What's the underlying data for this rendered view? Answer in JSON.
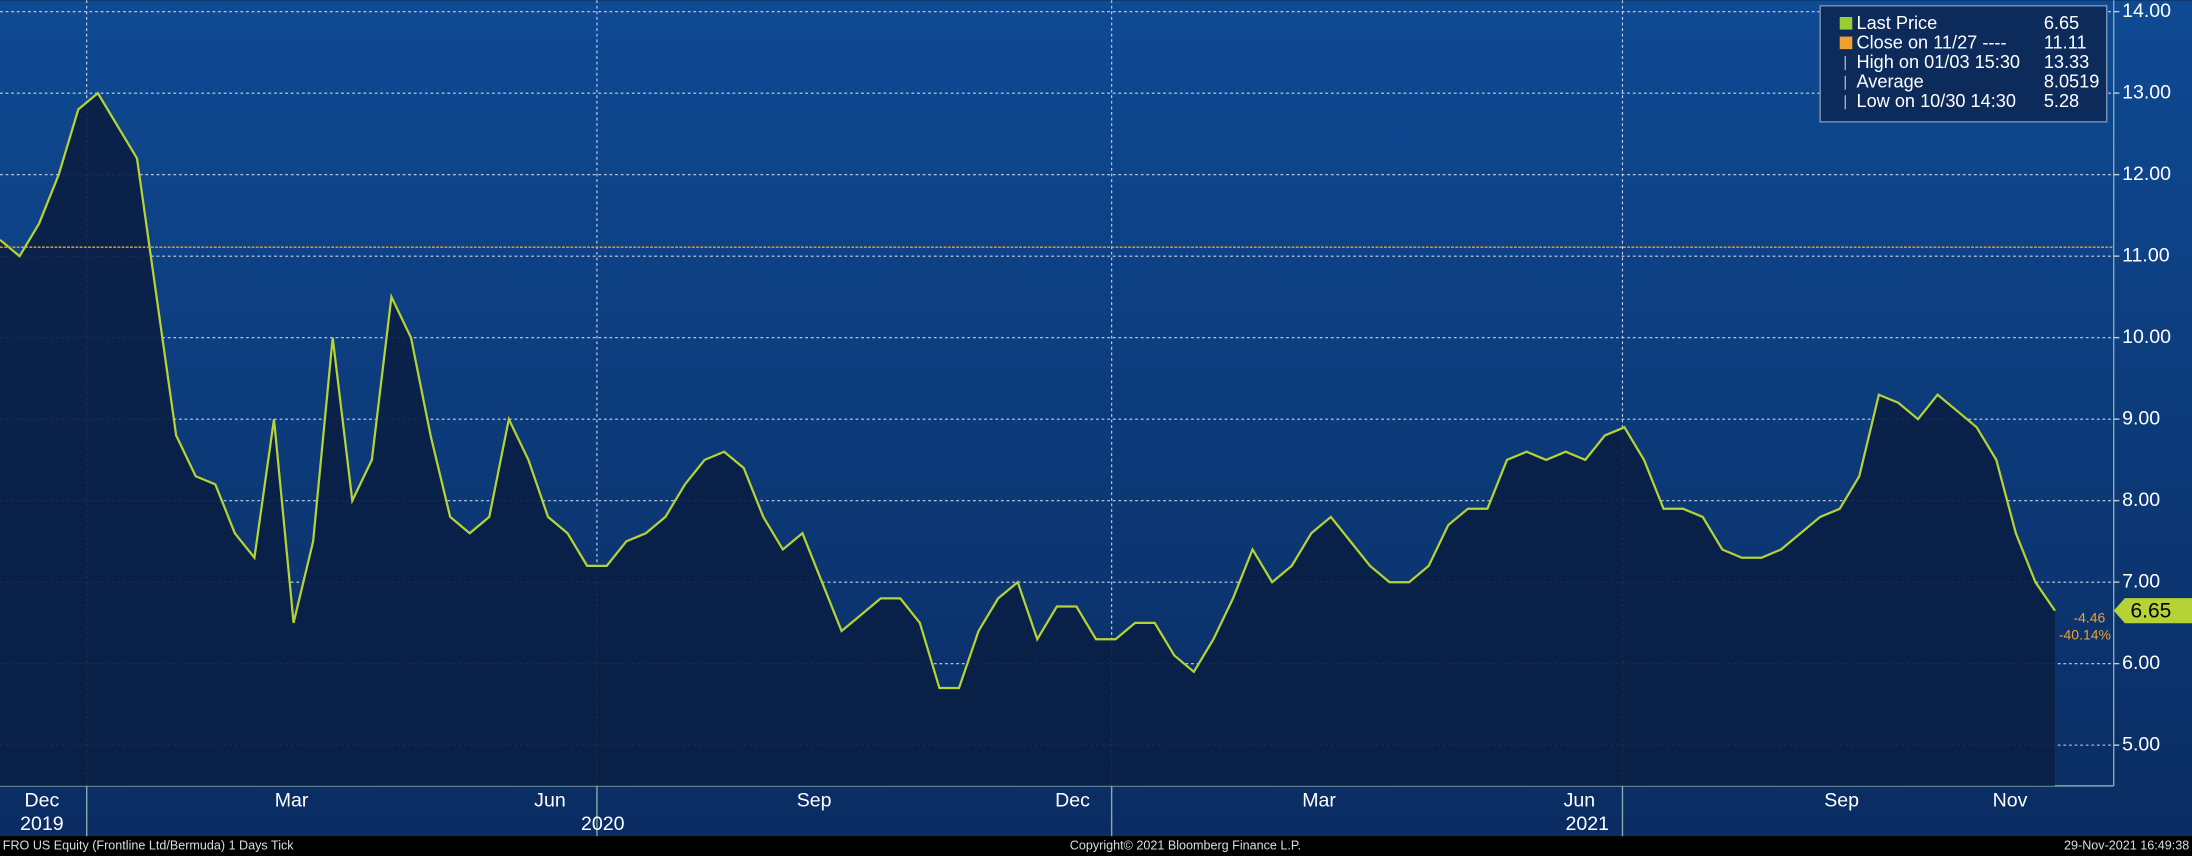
{
  "chart_data": {
    "type": "line",
    "series": [
      {
        "name": "Last Price",
        "color": "#b5d334",
        "values": [
          11.2,
          11.0,
          11.4,
          12.0,
          12.8,
          13.0,
          12.6,
          12.2,
          10.5,
          8.8,
          8.3,
          8.2,
          7.6,
          7.3,
          9.0,
          6.5,
          7.5,
          10.0,
          8.0,
          8.5,
          10.5,
          10.0,
          8.8,
          7.8,
          7.6,
          7.8,
          9.0,
          8.5,
          7.8,
          7.6,
          7.2,
          7.2,
          7.5,
          7.6,
          7.8,
          8.2,
          8.5,
          8.6,
          8.4,
          7.8,
          7.4,
          7.6,
          7.0,
          6.4,
          6.6,
          6.8,
          6.8,
          6.5,
          5.7,
          5.7,
          6.4,
          6.8,
          7.0,
          6.3,
          6.7,
          6.7,
          6.3,
          6.3,
          6.5,
          6.5,
          6.1,
          5.9,
          6.3,
          6.8,
          7.4,
          7.0,
          7.2,
          7.6,
          7.8,
          7.5,
          7.2,
          7.0,
          7.0,
          7.2,
          7.7,
          7.9,
          7.9,
          8.5,
          8.6,
          8.5,
          8.6,
          8.5,
          8.8,
          8.9,
          8.5,
          7.9,
          7.9,
          7.8,
          7.4,
          7.3,
          7.3,
          7.4,
          7.6,
          7.8,
          7.9,
          8.3,
          9.3,
          9.2,
          9.0,
          9.3,
          9.1,
          8.9,
          8.5,
          7.6,
          7.0,
          6.65
        ]
      }
    ],
    "xlim": [
      0,
      108
    ],
    "ylim": [
      4.5,
      14.14
    ],
    "yticks": [
      {
        "value": 5,
        "label": "5.00"
      },
      {
        "value": 6,
        "label": "6.00"
      },
      {
        "value": 7,
        "label": "7.00"
      },
      {
        "value": 8,
        "label": "8.00"
      },
      {
        "value": 9,
        "label": "9.00"
      },
      {
        "value": 10,
        "label": "10.00"
      },
      {
        "value": 11,
        "label": "11.00"
      },
      {
        "value": 12,
        "label": "12.00"
      },
      {
        "value": 13,
        "label": "13.00"
      },
      {
        "value": 14,
        "label": "14.00"
      }
    ],
    "xticks": [
      {
        "value": 2.14,
        "label": "Dec"
      },
      {
        "value": 14.9,
        "label": "Mar"
      },
      {
        "value": 28.1,
        "label": "Jun"
      },
      {
        "value": 41.6,
        "label": "Sep"
      },
      {
        "value": 54.8,
        "label": "Dec"
      },
      {
        "value": 67.4,
        "label": "Mar"
      },
      {
        "value": 80.7,
        "label": "Jun"
      },
      {
        "value": 94.1,
        "label": "Sep"
      },
      {
        "value": 102.7,
        "label": "Nov"
      }
    ],
    "year_ticks": [
      {
        "value": 2.14,
        "label": "2019"
      },
      {
        "value": 30.8,
        "label": "2020"
      },
      {
        "value": 81.1,
        "label": "2021"
      }
    ],
    "xgrid": [
      4.43,
      30.5,
      56.8,
      82.9
    ],
    "grid": true,
    "legend": [
      {
        "label": "Last Price",
        "value": 6.65,
        "color": "#9acd32"
      },
      {
        "label": "Close on 11/27 ----",
        "value": 11.11,
        "color": "#f0a030"
      },
      {
        "label": "High on 01/03 15:30",
        "value": 13.33
      },
      {
        "label": "Average",
        "value": 8.0519
      },
      {
        "label": "Low on 10/30 14:30",
        "value": 5.28
      }
    ],
    "change": -4.46,
    "change_pct": {
      "value": -40.14,
      "label": "-40.14%"
    },
    "footer_left": "FRO US Equity (Frontline Ltd/Bermuda) 1 Days  Tick",
    "footer_center": "Copyright© 2021 Bloomberg Finance L.P.",
    "footer_right": "29-Nov-2021 16:49:38"
  }
}
